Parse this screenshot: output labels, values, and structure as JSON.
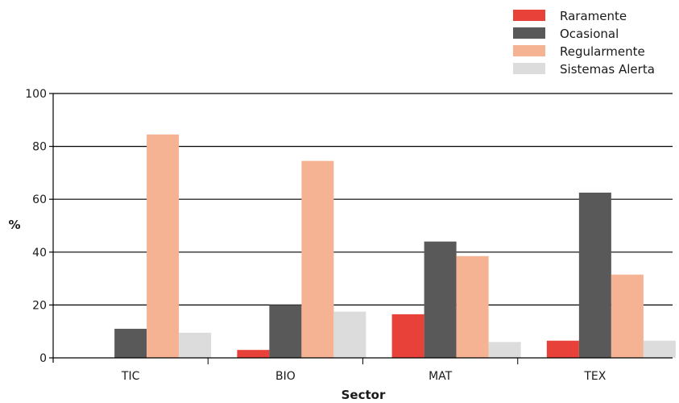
{
  "chart_data": {
    "type": "bar",
    "xlabel": "Sector",
    "ylabel": "%",
    "ylim": [
      0,
      100
    ],
    "yticks": [
      0,
      20,
      40,
      60,
      80,
      100
    ],
    "grid": "horizontal",
    "legend_position": "top-right",
    "categories": [
      "TIC",
      "BIO",
      "MAT",
      "TEX"
    ],
    "series": [
      {
        "name": "Raramente",
        "color": "#e8413a",
        "values": [
          0,
          3,
          16.5,
          6.5
        ]
      },
      {
        "name": "Ocasional",
        "color": "#595959",
        "values": [
          11,
          20,
          44,
          62.5
        ]
      },
      {
        "name": "Regularmente",
        "color": "#f5b394",
        "values": [
          84.5,
          74.5,
          38.5,
          31.5
        ]
      },
      {
        "name": "Sistemas Alerta",
        "color": "#dcdcdc",
        "values": [
          9.5,
          17.5,
          6,
          6.5
        ]
      }
    ]
  }
}
